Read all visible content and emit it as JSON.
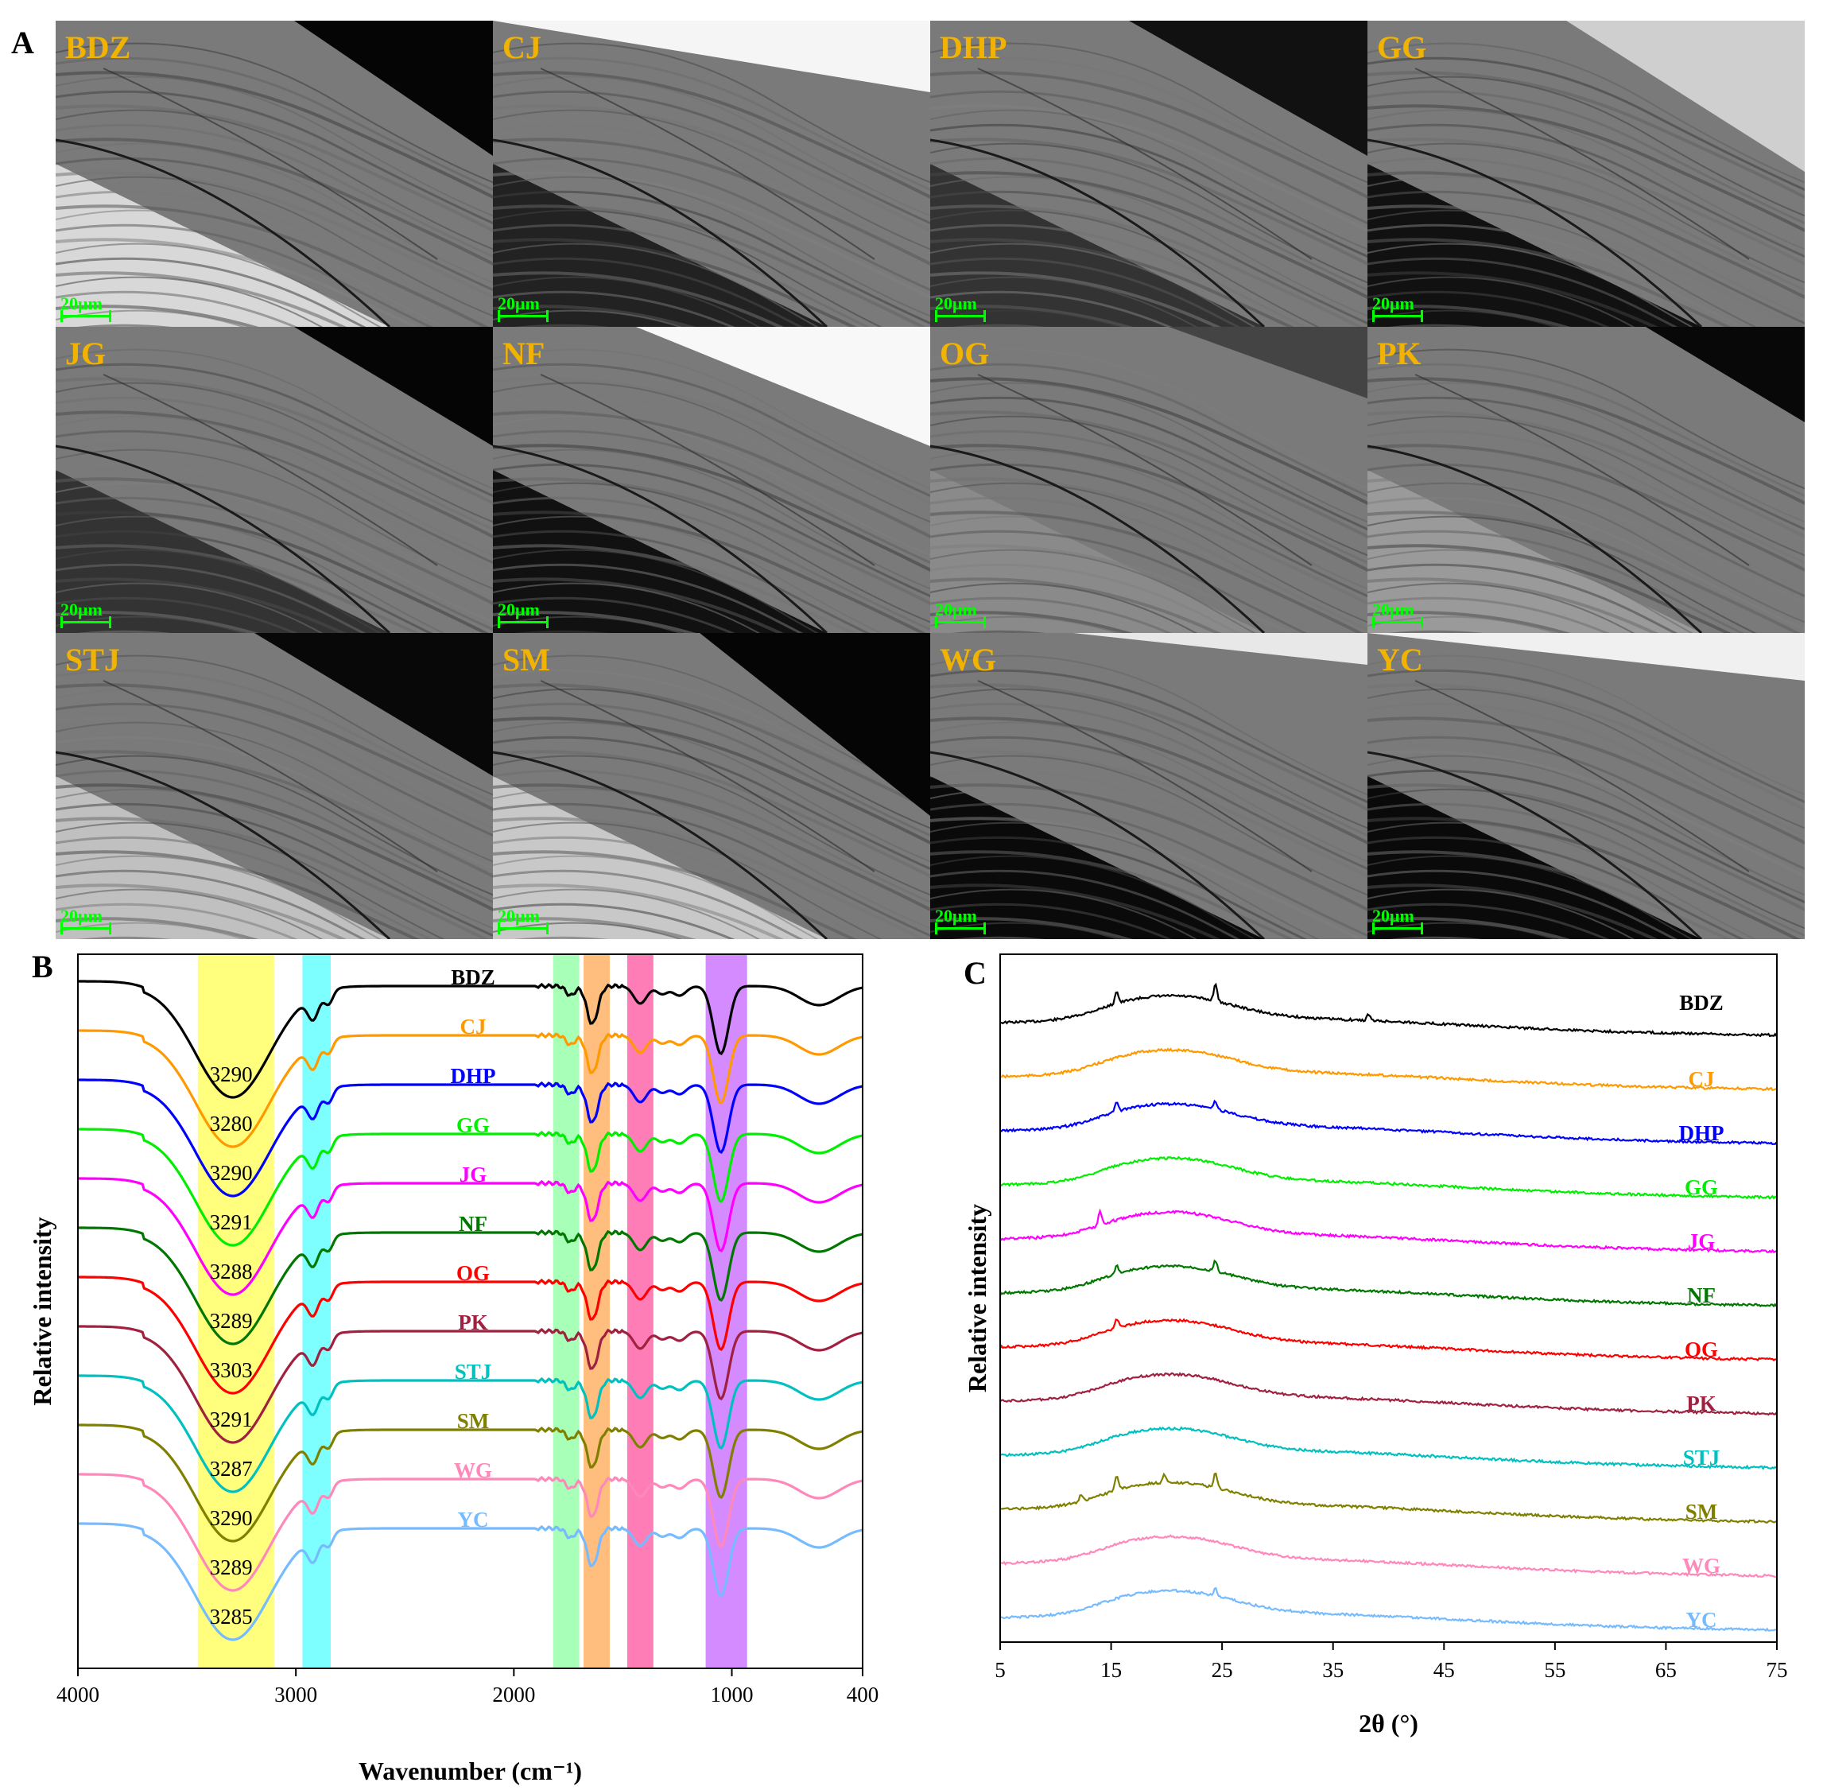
{
  "panels": {
    "a": "A",
    "b": "B",
    "c": "C"
  },
  "sem": {
    "scale_label": "20μm",
    "label_color": "#f2b300",
    "scale_color": "#00ff00",
    "tiles": [
      {
        "label": "BDZ"
      },
      {
        "label": "CJ"
      },
      {
        "label": "DHP"
      },
      {
        "label": "GG"
      },
      {
        "label": "JG"
      },
      {
        "label": "NF"
      },
      {
        "label": "OG"
      },
      {
        "label": "PK"
      },
      {
        "label": "STJ"
      },
      {
        "label": "SM"
      },
      {
        "label": "WG"
      },
      {
        "label": "YC"
      }
    ]
  },
  "chart_data": [
    {
      "type": "line",
      "panel": "B",
      "xlabel": "Wavenumber (cm⁻¹)",
      "ylabel": "Relative intensity",
      "xlim": [
        4000,
        400
      ],
      "x_reversed": true,
      "xticks": [
        4000,
        3000,
        2000,
        1000,
        400
      ],
      "highlight_bands": [
        {
          "range": [
            3450,
            3100
          ],
          "color": "#ffff66"
        },
        {
          "range": [
            2970,
            2840
          ],
          "color": "#66ffff"
        },
        {
          "range": [
            1820,
            1700
          ],
          "color": "#99ffaa"
        },
        {
          "range": [
            1680,
            1560
          ],
          "color": "#ffb366"
        },
        {
          "range": [
            1480,
            1360
          ],
          "color": "#ff66aa"
        },
        {
          "range": [
            1120,
            930
          ],
          "color": "#cc77ff"
        }
      ],
      "series": [
        {
          "name": "BDZ",
          "color": "#000000",
          "peak_label": "3290"
        },
        {
          "name": "CJ",
          "color": "#ff9900",
          "peak_label": "3280"
        },
        {
          "name": "DHP",
          "color": "#0000ff",
          "peak_label": "3290"
        },
        {
          "name": "GG",
          "color": "#00ee00",
          "peak_label": "3291"
        },
        {
          "name": "JG",
          "color": "#ff00ff",
          "peak_label": "3288"
        },
        {
          "name": "NF",
          "color": "#007700",
          "peak_label": "3289"
        },
        {
          "name": "OG",
          "color": "#ff0000",
          "peak_label": "3303"
        },
        {
          "name": "PK",
          "color": "#a02040",
          "peak_label": "3291"
        },
        {
          "name": "STJ",
          "color": "#00c0c0",
          "peak_label": "3287"
        },
        {
          "name": "SM",
          "color": "#808000",
          "peak_label": "3290"
        },
        {
          "name": "WG",
          "color": "#ff88bb",
          "peak_label": "3289"
        },
        {
          "name": "YC",
          "color": "#77bbff",
          "peak_label": "3285"
        }
      ]
    },
    {
      "type": "line",
      "panel": "C",
      "xlabel": "2θ (°)",
      "ylabel": "Relative intensity",
      "xlim": [
        5,
        75
      ],
      "xticks": [
        5,
        15,
        25,
        35,
        45,
        55,
        65,
        75
      ],
      "series": [
        {
          "name": "BDZ",
          "color": "#000000"
        },
        {
          "name": "CJ",
          "color": "#ff9900"
        },
        {
          "name": "DHP",
          "color": "#0000ff"
        },
        {
          "name": "GG",
          "color": "#00ee00"
        },
        {
          "name": "JG",
          "color": "#ff00ff"
        },
        {
          "name": "NF",
          "color": "#007700"
        },
        {
          "name": "OG",
          "color": "#ff0000"
        },
        {
          "name": "PK",
          "color": "#a02040"
        },
        {
          "name": "STJ",
          "color": "#00c0c0"
        },
        {
          "name": "SM",
          "color": "#808000"
        },
        {
          "name": "WG",
          "color": "#ff88bb"
        },
        {
          "name": "YC",
          "color": "#77bbff"
        }
      ]
    }
  ]
}
